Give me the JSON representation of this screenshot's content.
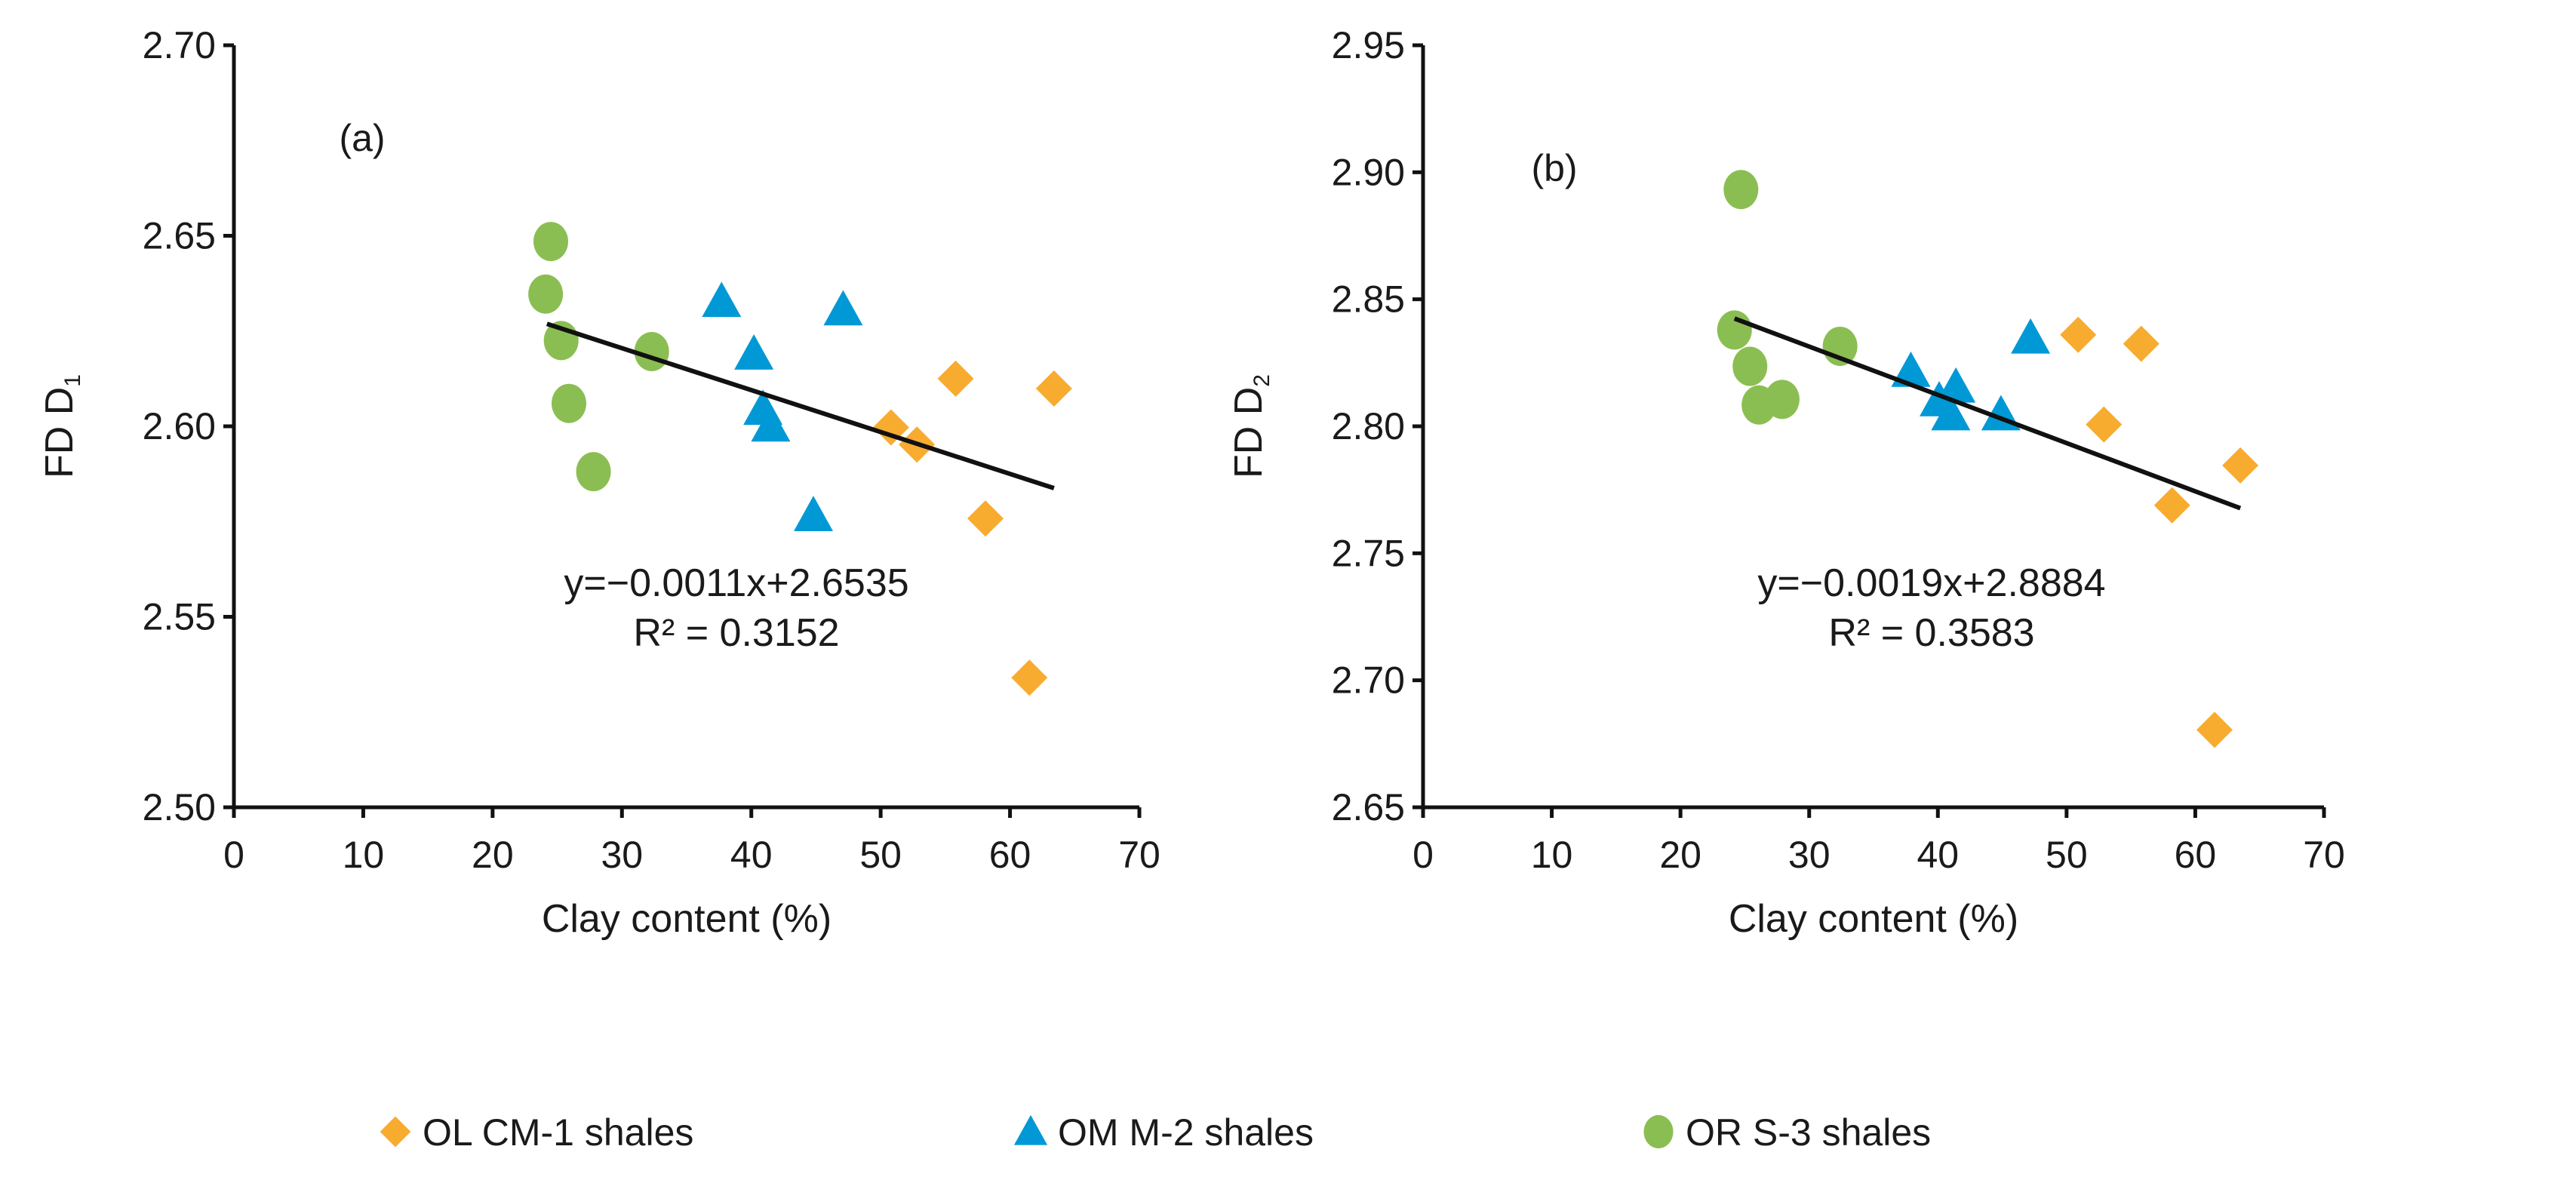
{
  "legend": [
    {
      "label": "OL CM-1 shales",
      "marker": "diamond",
      "color": "#F7AC30"
    },
    {
      "label": "OM M-2 shales",
      "marker": "triangle",
      "color": "#0099D5"
    },
    {
      "label": "OR S-3 shales",
      "marker": "circle",
      "color": "#8BBE52"
    }
  ],
  "chart_data": [
    {
      "type": "scatter",
      "panel_label": "(a)",
      "xlabel": "Clay content (%)",
      "ylabel": "FD D",
      "ylabel_sub": "1",
      "xlim": [
        0,
        70
      ],
      "ylim": [
        2.5,
        2.7
      ],
      "xticks": [
        "0",
        "10",
        "20",
        "30",
        "40",
        "50",
        "60",
        "70"
      ],
      "yticks": [
        "2.50",
        "2.55",
        "2.60",
        "2.65",
        "2.70"
      ],
      "series": [
        {
          "name": "OL CM-1 shales",
          "points": [
            [
              55.8,
              2.6125
            ],
            [
              63.4,
              2.6099
            ],
            [
              50.8,
              2.5997
            ],
            [
              52.8,
              2.5952
            ],
            [
              58.1,
              2.5758
            ],
            [
              61.5,
              2.534
            ]
          ]
        },
        {
          "name": "OM M-2 shales",
          "points": [
            [
              37.7,
              2.6328
            ],
            [
              47.1,
              2.6306
            ],
            [
              40.2,
              2.619
            ],
            [
              40.9,
              2.6045
            ],
            [
              41.5,
              2.6001
            ],
            [
              44.8,
              2.5766
            ]
          ]
        },
        {
          "name": "OR S-3 shales",
          "points": [
            [
              24.5,
              2.6485
            ],
            [
              24.1,
              2.6347
            ],
            [
              25.3,
              2.6225
            ],
            [
              25.9,
              2.606
            ],
            [
              32.3,
              2.6196
            ],
            [
              27.8,
              2.5881
            ]
          ]
        }
      ],
      "trendline": {
        "slope": -0.0011,
        "intercept": 2.6535,
        "x_range": [
          24.2,
          63.4
        ]
      },
      "equation": "y=−0.0011x+2.6535",
      "r2": "R² = 0.3152"
    },
    {
      "type": "scatter",
      "panel_label": "(b)",
      "xlabel": "Clay content (%)",
      "ylabel": "FD D",
      "ylabel_sub": "2",
      "xlim": [
        0,
        70
      ],
      "ylim": [
        2.65,
        2.95
      ],
      "xticks": [
        "0",
        "10",
        "20",
        "30",
        "40",
        "50",
        "60",
        "70"
      ],
      "yticks": [
        "2.65",
        "2.70",
        "2.75",
        "2.80",
        "2.85",
        "2.90",
        "2.95"
      ],
      "series": [
        {
          "name": "OL CM-1 shales",
          "points": [
            [
              50.9,
              2.836
            ],
            [
              55.8,
              2.8325
            ],
            [
              52.9,
              2.8007
            ],
            [
              63.5,
              2.7846
            ],
            [
              58.2,
              2.7689
            ],
            [
              61.5,
              2.6805
            ]
          ]
        },
        {
          "name": "OM M-2 shales",
          "points": [
            [
              37.9,
              2.8217
            ],
            [
              47.2,
              2.8348
            ],
            [
              40.1,
              2.8101
            ],
            [
              41.4,
              2.8155
            ],
            [
              41.0,
              2.8046
            ],
            [
              44.9,
              2.8046
            ]
          ]
        },
        {
          "name": "OR S-3 shales",
          "points": [
            [
              24.7,
              2.8932
            ],
            [
              24.2,
              2.8379
            ],
            [
              25.4,
              2.8236
            ],
            [
              26.1,
              2.8084
            ],
            [
              27.9,
              2.8106
            ],
            [
              32.4,
              2.8315
            ]
          ]
        }
      ],
      "trendline": {
        "slope": -0.0019,
        "intercept": 2.8884,
        "x_range": [
          24.2,
          63.5
        ]
      },
      "equation": "y=−0.0019x+2.8884",
      "r2": "R² = 0.3583"
    }
  ]
}
